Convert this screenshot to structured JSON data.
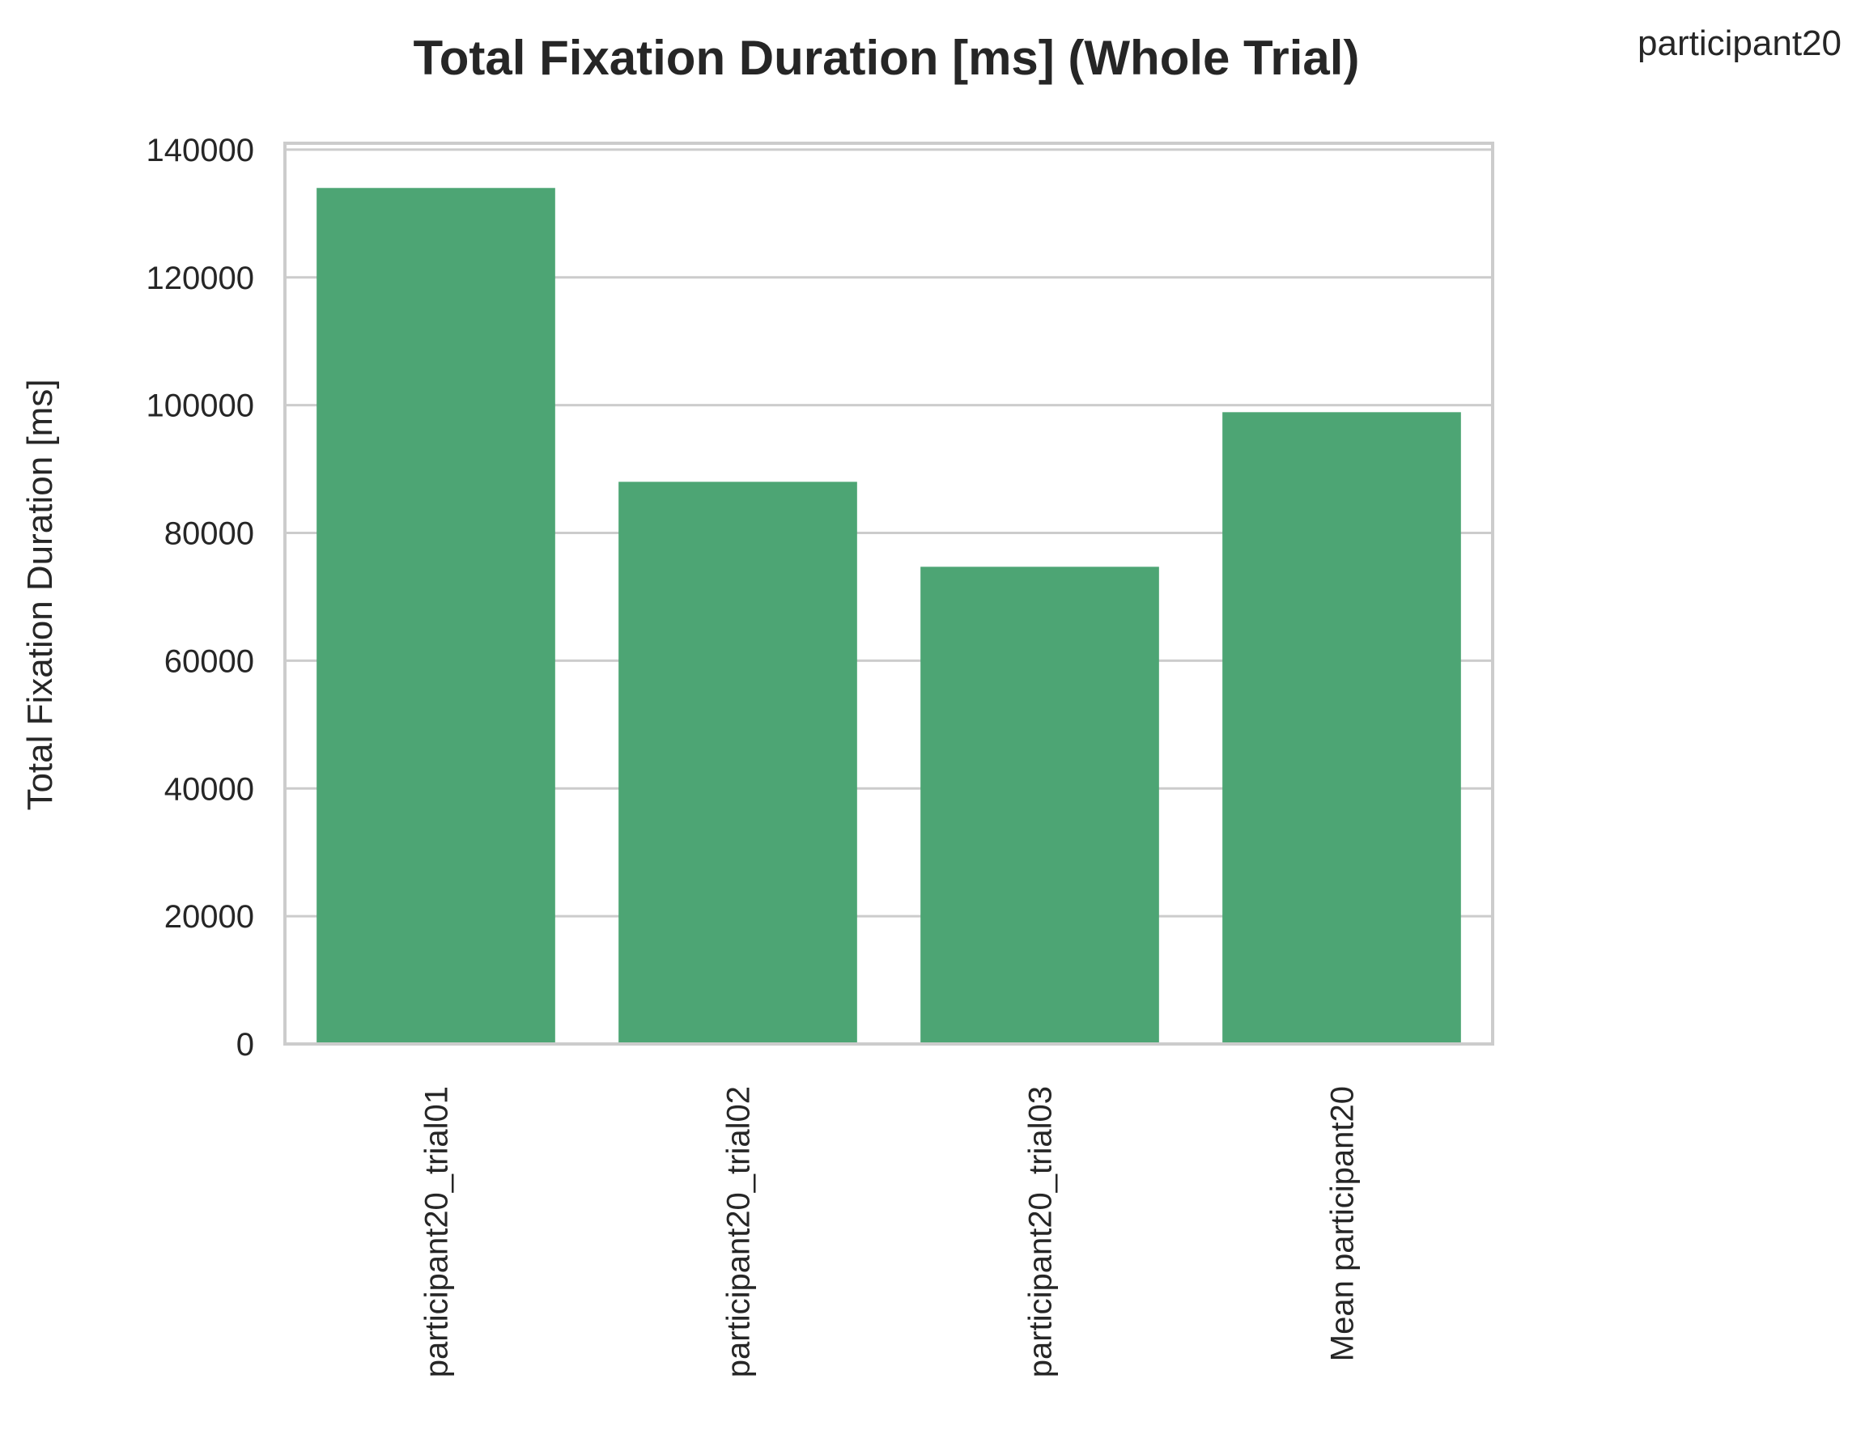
{
  "chart_data": {
    "type": "bar",
    "title": "Total Fixation Duration [ms] (Whole Trial)",
    "corner_label": "participant20",
    "xlabel": "",
    "ylabel": "Total Fixation Duration [ms]",
    "categories": [
      "participant20_trial01",
      "participant20_trial02",
      "participant20_trial03",
      "Mean participant20"
    ],
    "values": [
      134000,
      88000,
      74700,
      98900
    ],
    "ylim": [
      0,
      141000
    ],
    "yticks": [
      0,
      20000,
      40000,
      60000,
      80000,
      100000,
      120000,
      140000
    ],
    "ytick_labels": [
      "0",
      "20000",
      "40000",
      "60000",
      "80000",
      "100000",
      "120000",
      "140000"
    ],
    "grid": "horizontal",
    "bar_color": "#4da574",
    "grid_color": "#cccccc",
    "frame_color": "#cccccc"
  }
}
